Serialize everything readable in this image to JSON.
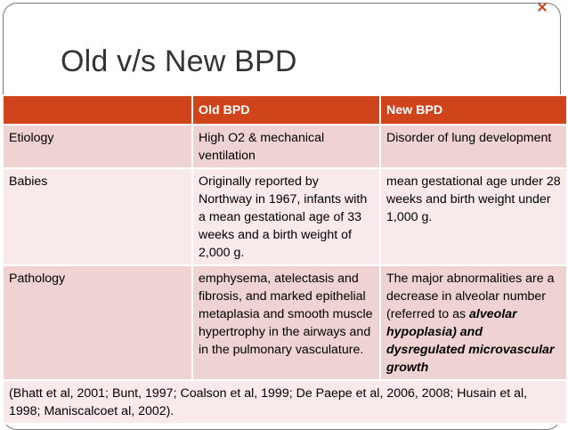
{
  "slide": {
    "title": "Old v/s New BPD"
  },
  "table": {
    "headers": [
      "",
      "Old BPD",
      "New BPD"
    ],
    "rows": [
      {
        "label": "Etiology",
        "old": "High O2 & mechanical ventilation",
        "new": "Disorder of  lung development"
      },
      {
        "label": "Babies",
        "old": "Originally reported by Northway in 1967, infants with a mean gestational age of 33 weeks and a birth weight of 2,000 g.",
        "new": "mean gestational age under 28 weeks and birth weight under 1,000 g."
      },
      {
        "label": "Pathology",
        "old": "emphysema, atelectasis and fibrosis, and marked epithelial metaplasia and smooth muscle hypertrophy in the airways and in the pulmonary vasculature.",
        "new_plain": "The major abnormalities are a decrease in alveolar number (referred to as ",
        "new_emph": "alveolar hypoplasia) and dysregulated microvascular growth"
      }
    ],
    "footnote": "(Bhatt et al, 2001; Bunt, 1997; Coalson et al, 1999; De Paepe et al, 2006, 2008; Husain et al, 1998; Maniscalcoet al, 2002)."
  },
  "colors": {
    "accent": "#d0441c",
    "row_dark": "#efd3d3",
    "row_light": "#f8eaea",
    "title_text": "#333333"
  }
}
